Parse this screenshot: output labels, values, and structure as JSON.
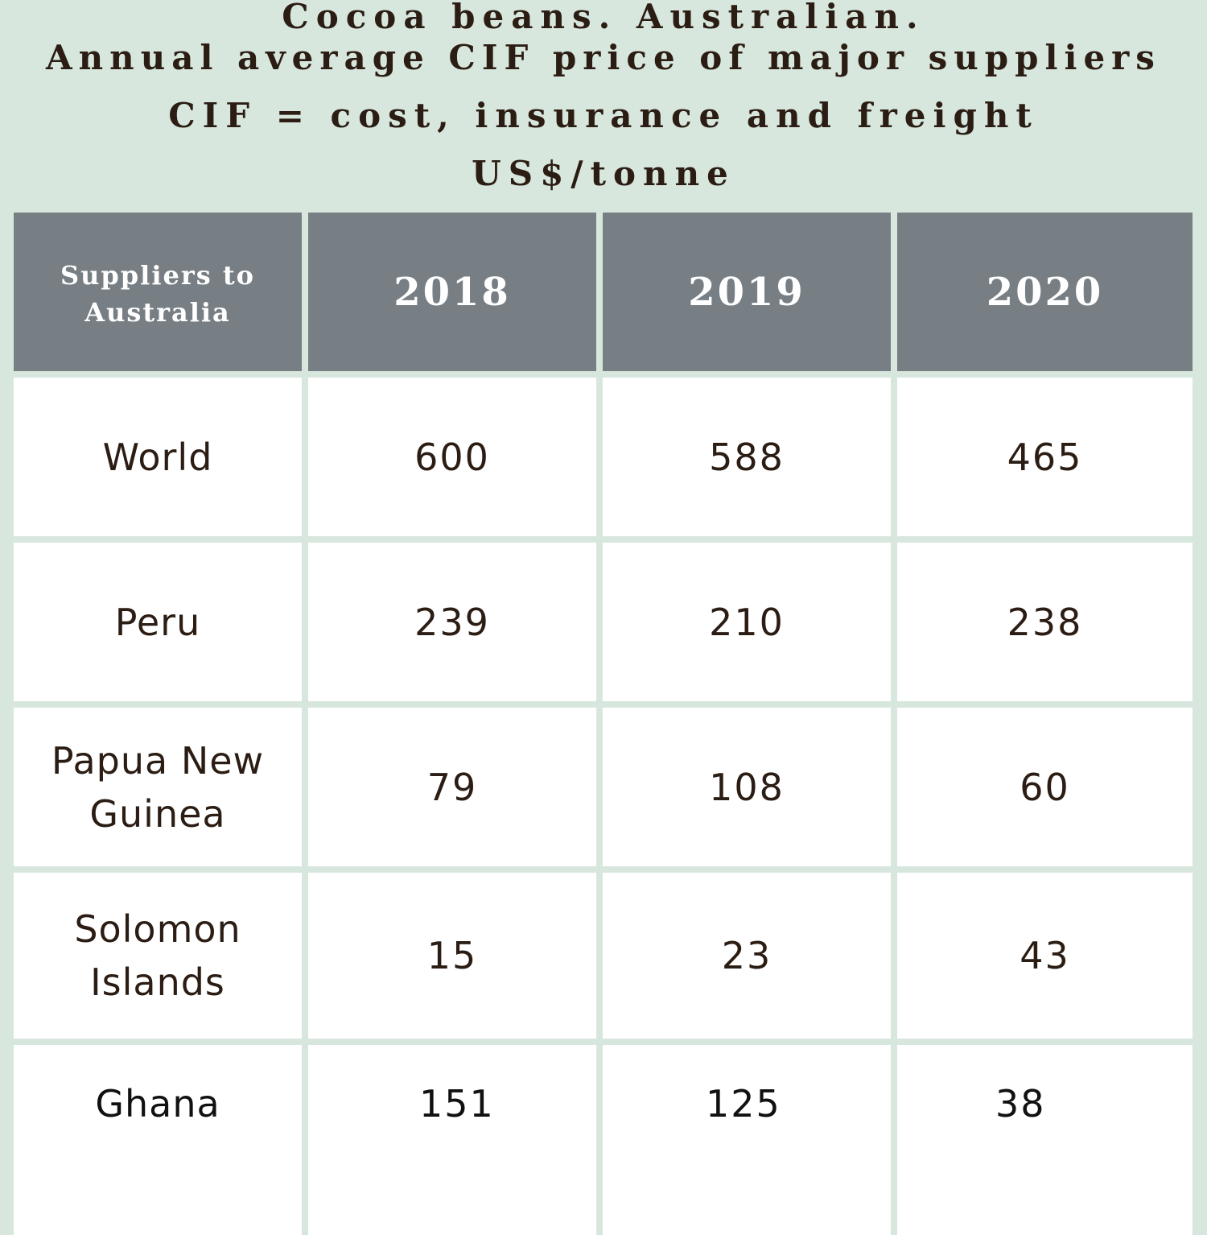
{
  "title_lines": [
    "Cocoa beans. Australian.",
    "Annual average CIF price of major suppliers",
    "CIF = cost, insurance and freight",
    "US$/tonne"
  ],
  "colors": {
    "background": "#d8e7dd",
    "header_fill": "#777f84",
    "cell_fill": "#ffffff",
    "text": "#2b1d14"
  },
  "chart_data": {
    "type": "table",
    "columns": [
      "Suppliers to Australia",
      "2018",
      "2019",
      "2020"
    ],
    "rows": [
      [
        "World",
        "600",
        "588",
        "465"
      ],
      [
        "Peru",
        "239",
        "210",
        "238"
      ],
      [
        "Papua New Guinea",
        "79",
        "108",
        "60"
      ],
      [
        "Solomon Islands",
        "15",
        "23",
        "43"
      ],
      [
        "Ghana",
        "151",
        "125",
        "38"
      ]
    ]
  }
}
